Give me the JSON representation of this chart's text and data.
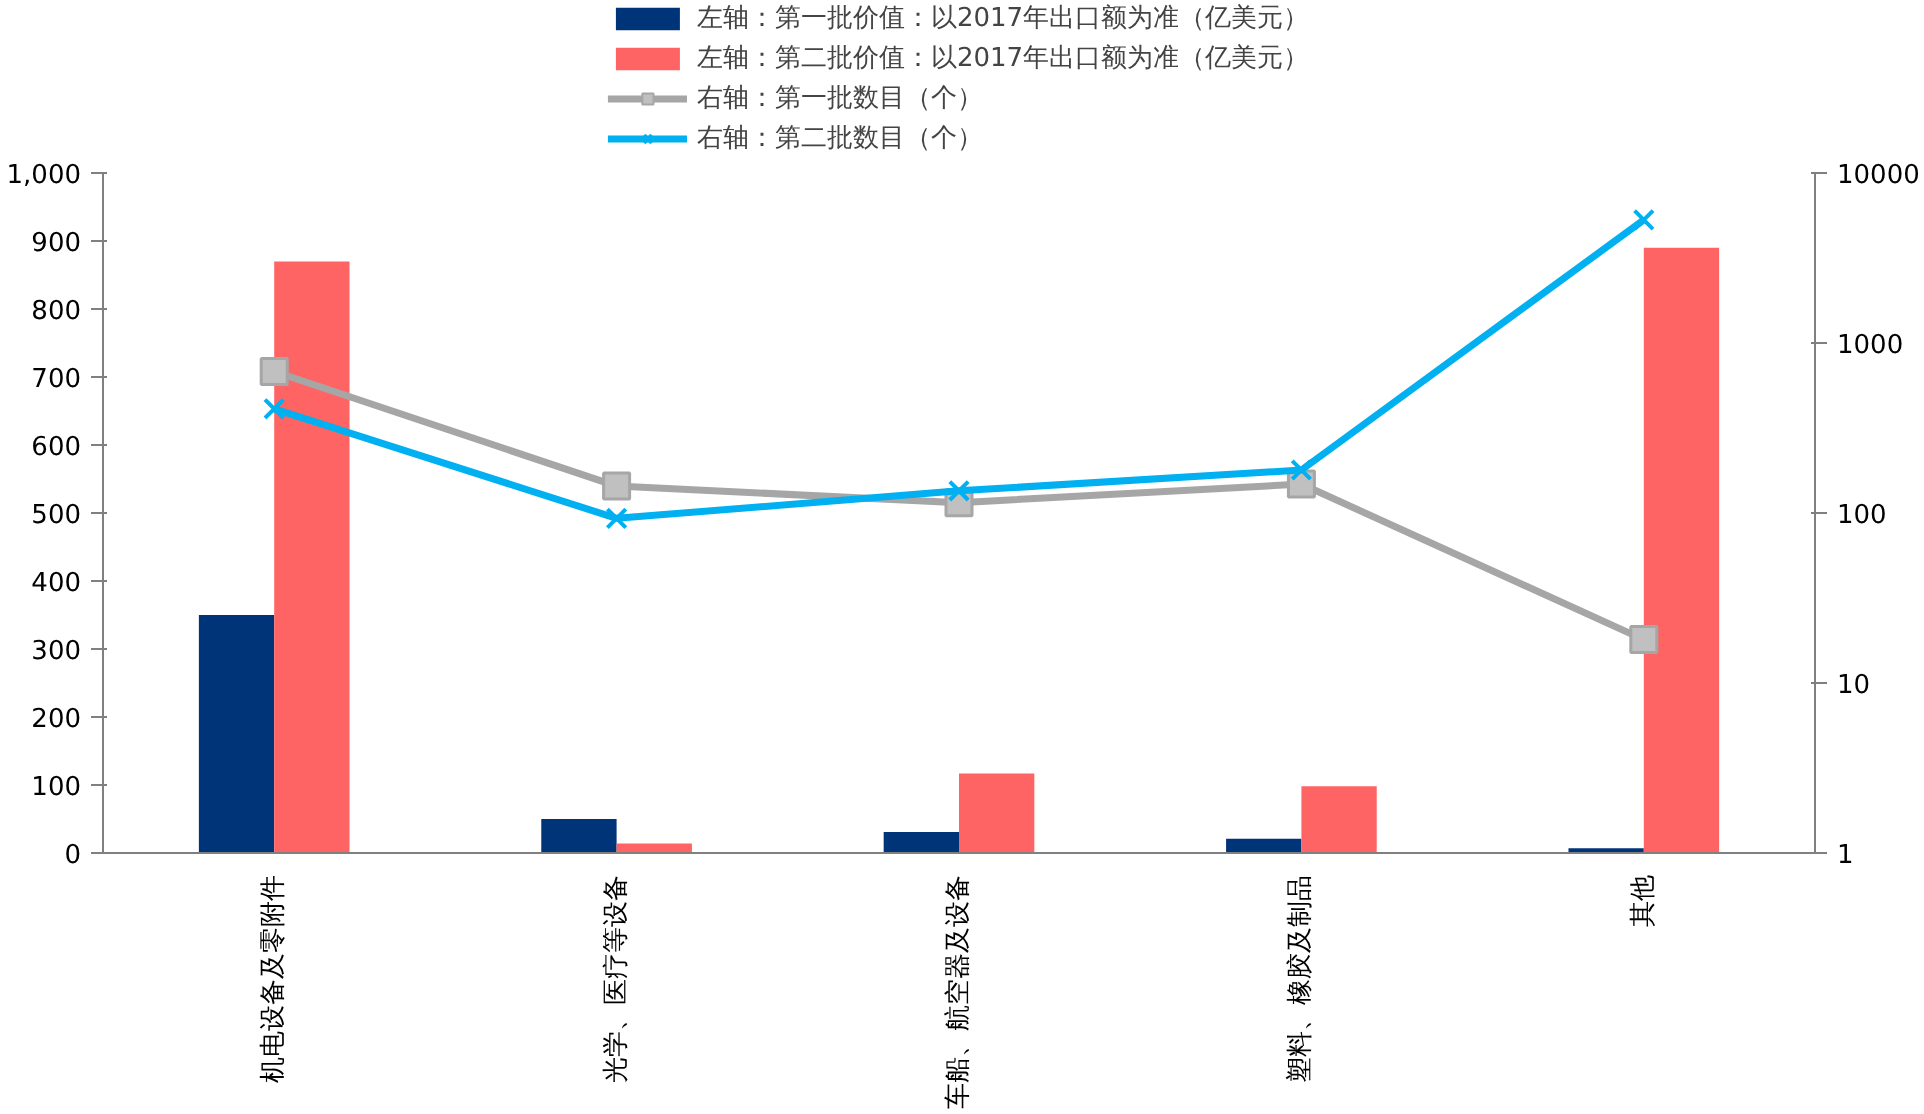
{
  "chart_data": {
    "type": "bar",
    "categories": [
      "机电设备及零附件",
      "光学、医疗等设备",
      "车船、航空器及设备",
      "塑料、橡胶及制品",
      "其他"
    ],
    "series": [
      {
        "name": "左轴：第一批价值：以2017年出口额为准（亿美元）",
        "color": "#003478",
        "values": [
          350,
          50,
          31,
          21,
          7
        ]
      },
      {
        "name": "左轴：第二批价值：以2017年出口额为准（亿美元）",
        "color": "#ff6464",
        "values": [
          870,
          14,
          117,
          98,
          890
        ]
      },
      {
        "name": "右轴：第一批数目（个）",
        "type": "line",
        "axis": "y2",
        "marker": "square",
        "color": "#a6a6a6",
        "values": [
          680,
          144,
          115,
          148,
          18
        ]
      },
      {
        "name": "右轴：第二批数目（个）",
        "type": "line",
        "axis": "y2",
        "marker": "cross",
        "color": "#00b0f0",
        "values": [
          410,
          93,
          135,
          179,
          5300
        ]
      }
    ],
    "ylim": [
      0,
      1000
    ],
    "yticks": [
      0,
      {
        "value": 100,
        "label": "100"
      },
      200,
      300,
      400,
      500,
      600,
      700,
      800,
      900,
      {
        "value": 1000,
        "label": "1,000"
      }
    ],
    "y2lim": [
      1,
      10000
    ],
    "y2ticks": [
      1,
      10,
      100,
      1000,
      10000
    ],
    "log": "y2",
    "grid": false,
    "legend": "top"
  }
}
